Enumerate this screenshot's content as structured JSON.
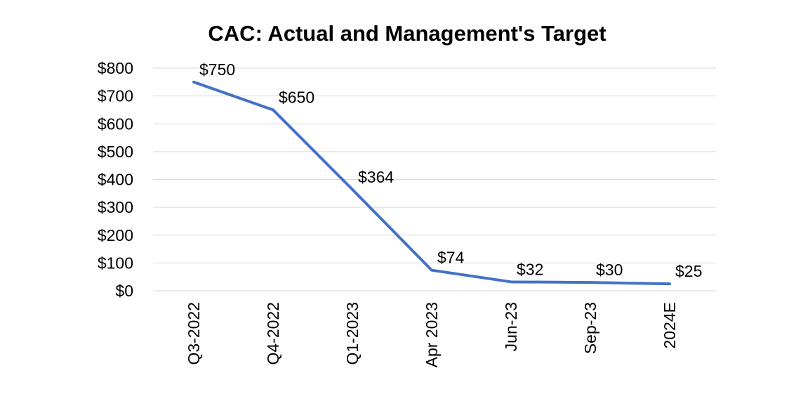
{
  "chart_data": {
    "type": "line",
    "title": "CAC: Actual and Management's Target",
    "xlabel": "",
    "ylabel": "",
    "categories": [
      "Q3-2022",
      "Q4-2022",
      "Q1-2023",
      "Apr 2023",
      "Jun-23",
      "Sep-23",
      "2024E"
    ],
    "series": [
      {
        "values": [
          750,
          650,
          364,
          74,
          32,
          30,
          25
        ],
        "data_labels": [
          "$750",
          "$650",
          "$364",
          "$74",
          "$32",
          "$30",
          "$25"
        ]
      }
    ],
    "ylim": [
      0,
      800
    ],
    "y_ticks": [
      0,
      100,
      200,
      300,
      400,
      500,
      600,
      700,
      800
    ],
    "y_tick_labels": [
      "$0",
      "$100",
      "$200",
      "$300",
      "$400",
      "$500",
      "$600",
      "$700",
      "$800"
    ],
    "grid": true,
    "line_color": "#4472c4"
  }
}
